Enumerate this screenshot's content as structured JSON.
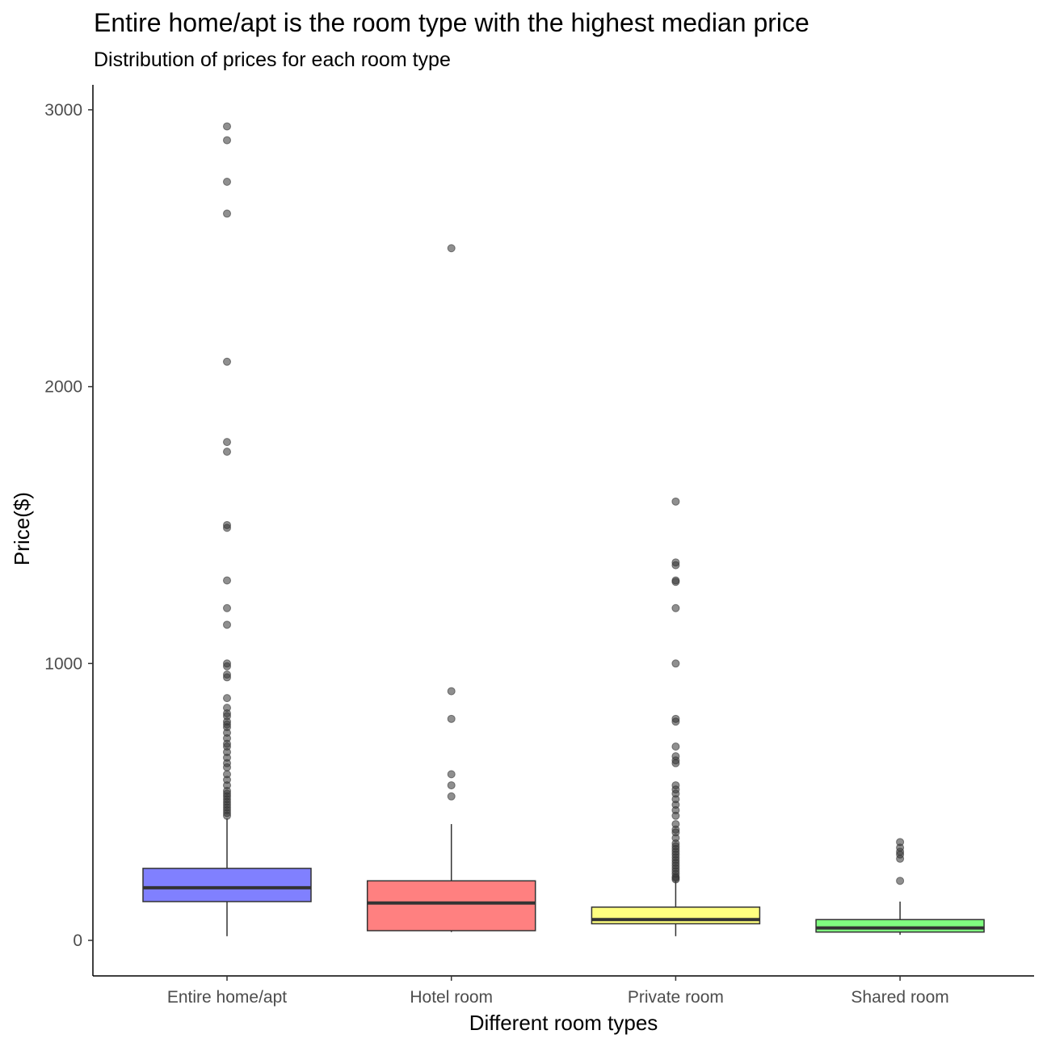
{
  "title": "Entire home/apt is the room type with the highest median price",
  "subtitle": "Distribution of prices for each room type",
  "colors": {
    "Entire home/apt": "#8080ff",
    "Hotel room": "#ff8080",
    "Private room": "#ffff80",
    "Shared room": "#80ff80",
    "outlier": "#333333",
    "axis": "#000000"
  },
  "chart_data": {
    "type": "boxplot",
    "title": "Entire home/apt is the room type with the highest median price",
    "subtitle": "Distribution of prices for each room type",
    "xlabel": "Different room types",
    "ylabel": "Price($)",
    "ylim": [
      -130,
      3090
    ],
    "yticks": [
      0,
      1000,
      2000,
      3000
    ],
    "categories": [
      "Entire home/apt",
      "Hotel room",
      "Private room",
      "Shared room"
    ],
    "grid": false,
    "legend": "none",
    "boxes": [
      {
        "name": "Entire home/apt",
        "min": 15,
        "q1": 140,
        "median": 190,
        "q3": 260,
        "max": 440,
        "outliers": [
          2940,
          2890,
          2740,
          2625,
          2090,
          1800,
          1765,
          1500,
          1490,
          1300,
          1200,
          1140,
          1000,
          990,
          960,
          950,
          875,
          840,
          820,
          810,
          790,
          780,
          770,
          750,
          730,
          710,
          700,
          680,
          660,
          640,
          625,
          600,
          580,
          560,
          540,
          530,
          520,
          510,
          500,
          490,
          480,
          470,
          460,
          450
        ]
      },
      {
        "name": "Hotel room",
        "min": 30,
        "q1": 35,
        "median": 135,
        "q3": 215,
        "max": 420,
        "outliers": [
          2500,
          900,
          800,
          600,
          560,
          520
        ]
      },
      {
        "name": "Private room",
        "min": 15,
        "q1": 60,
        "median": 75,
        "q3": 120,
        "max": 215,
        "outliers": [
          1585,
          1365,
          1355,
          1300,
          1295,
          1200,
          1000,
          800,
          790,
          700,
          665,
          650,
          640,
          560,
          545,
          530,
          510,
          490,
          470,
          450,
          420,
          400,
          390,
          370,
          350,
          340,
          330,
          320,
          310,
          300,
          290,
          280,
          270,
          260,
          250,
          240,
          230,
          225,
          220
        ]
      },
      {
        "name": "Shared room",
        "min": 20,
        "q1": 30,
        "median": 45,
        "q3": 75,
        "max": 140,
        "outliers": [
          355,
          335,
          320,
          310,
          295,
          215
        ]
      }
    ]
  }
}
